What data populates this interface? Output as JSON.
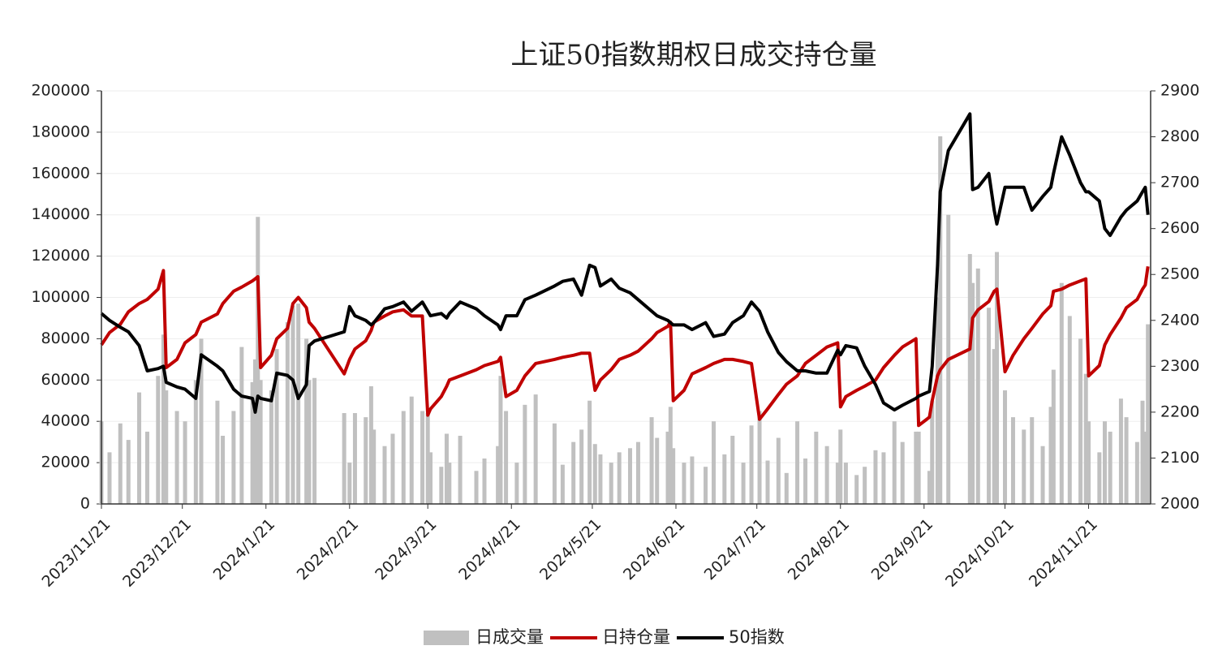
{
  "chart_data": {
    "type": "combo",
    "title": "上证50指数期权日成交持仓量",
    "x": [
      "2023/11/21",
      "2023/11/24",
      "2023/11/28",
      "2023/12/1",
      "2023/12/5",
      "2023/12/8",
      "2023/12/12",
      "2023/12/14",
      "2023/12/15",
      "2023/12/19",
      "2023/12/22",
      "2023/12/26",
      "2023/12/28",
      "2024/1/3",
      "2024/1/5",
      "2024/1/9",
      "2024/1/12",
      "2024/1/16",
      "2024/1/17",
      "2024/1/18",
      "2024/1/19",
      "2024/1/23",
      "2024/1/25",
      "2024/1/29",
      "2024/1/31",
      "2024/2/2",
      "2024/2/5",
      "2024/2/6",
      "2024/2/8",
      "2024/2/19",
      "2024/2/21",
      "2024/2/23",
      "2024/2/27",
      "2024/2/29",
      "2024/3/1",
      "2024/3/5",
      "2024/3/8",
      "2024/3/12",
      "2024/3/15",
      "2024/3/19",
      "2024/3/21",
      "2024/3/22",
      "2024/3/26",
      "2024/3/28",
      "2024/3/29",
      "2024/4/2",
      "2024/4/8",
      "2024/4/11",
      "2024/4/16",
      "2024/4/17",
      "2024/4/19",
      "2024/4/23",
      "2024/4/26",
      "2024/4/30",
      "2024/5/7",
      "2024/5/10",
      "2024/5/14",
      "2024/5/17",
      "2024/5/20",
      "2024/5/22",
      "2024/5/24",
      "2024/5/28",
      "2024/5/31",
      "2024/6/4",
      "2024/6/7",
      "2024/6/12",
      "2024/6/14",
      "2024/6/18",
      "2024/6/19",
      "2024/6/20",
      "2024/6/24",
      "2024/6/27",
      "2024/7/2",
      "2024/7/5",
      "2024/7/9",
      "2024/7/12",
      "2024/7/16",
      "2024/7/19",
      "2024/7/22",
      "2024/7/25",
      "2024/7/29",
      "2024/8/1",
      "2024/8/5",
      "2024/8/8",
      "2024/8/12",
      "2024/8/16",
      "2024/8/20",
      "2024/8/21",
      "2024/8/23",
      "2024/8/27",
      "2024/8/30",
      "2024/9/3",
      "2024/9/6",
      "2024/9/10",
      "2024/9/13",
      "2024/9/18",
      "2024/9/19",
      "2024/9/23",
      "2024/9/24",
      "2024/9/26",
      "2024/9/27",
      "2024/9/30",
      "2024/10/8",
      "2024/10/9",
      "2024/10/11",
      "2024/10/15",
      "2024/10/17",
      "2024/10/18",
      "2024/10/21",
      "2024/10/24",
      "2024/10/28",
      "2024/10/31",
      "2024/11/4",
      "2024/11/7",
      "2024/11/8",
      "2024/11/11",
      "2024/11/14",
      "2024/11/18",
      "2024/11/20",
      "2024/11/21",
      "2024/11/25",
      "2024/11/27",
      "2024/11/29",
      "2024/12/3",
      "2024/12/5",
      "2024/12/9",
      "2024/12/11",
      "2024/12/12",
      "2024/12/13"
    ],
    "series": [
      {
        "name": "日成交量",
        "kind": "bar",
        "color": "#c0c0c0",
        "values": [
          40000,
          25000,
          39000,
          31000,
          54000,
          35000,
          62000,
          82000,
          55000,
          45000,
          40000,
          60000,
          80000,
          50000,
          33000,
          45000,
          76000,
          59000,
          70000,
          139000,
          60000,
          55000,
          75000,
          88000,
          96000,
          97000,
          80000,
          60000,
          61000,
          44000,
          20000,
          44000,
          42000,
          57000,
          36000,
          28000,
          34000,
          45000,
          52000,
          45000,
          44000,
          25000,
          18000,
          34000,
          20000,
          33000,
          16000,
          22000,
          28000,
          62000,
          45000,
          20000,
          48000,
          53000,
          39000,
          19000,
          30000,
          36000,
          50000,
          29000,
          24000,
          20000,
          25000,
          27000,
          30000,
          42000,
          32000,
          35000,
          47000,
          27000,
          20000,
          23000,
          18000,
          40000,
          24000,
          33000,
          20000,
          38000,
          45000,
          21000,
          32000,
          15000,
          40000,
          22000,
          35000,
          28000,
          20000,
          36000,
          20000,
          14000,
          18000,
          26000,
          25000,
          40000,
          30000,
          35000,
          35000,
          16000,
          50000,
          100000,
          178000,
          140000,
          121000,
          107000,
          114000,
          95000,
          75000,
          122000,
          55000,
          42000,
          36000,
          42000,
          28000,
          47000,
          65000,
          107000,
          91000,
          80000,
          63000,
          40000,
          25000,
          40000,
          35000,
          51000,
          42000,
          30000,
          50000,
          35000,
          87000
        ]
      },
      {
        "name": "日持仓量",
        "kind": "line",
        "color": "#c00000",
        "values": [
          77000,
          83000,
          87000,
          93000,
          97000,
          99000,
          104000,
          113000,
          66000,
          70000,
          78000,
          82000,
          88000,
          92000,
          97000,
          103000,
          105000,
          108000,
          109000,
          110000,
          66000,
          72000,
          80000,
          85000,
          97000,
          100000,
          95000,
          88000,
          85000,
          63000,
          70000,
          75000,
          79000,
          84000,
          88000,
          91000,
          93000,
          94000,
          91000,
          91000,
          43000,
          46000,
          52000,
          57000,
          60000,
          62000,
          65000,
          67000,
          69000,
          71000,
          52000,
          55000,
          62000,
          68000,
          70000,
          71000,
          72000,
          73000,
          73000,
          55000,
          60000,
          65000,
          70000,
          72000,
          74000,
          80000,
          83000,
          86000,
          88000,
          50000,
          55000,
          63000,
          66000,
          68000,
          70000,
          70000,
          69000,
          68000,
          41000,
          46000,
          53000,
          58000,
          62000,
          68000,
          72000,
          76000,
          78000,
          47000,
          52000,
          55000,
          57000,
          60000,
          66000,
          72000,
          76000,
          80000,
          38000,
          42000,
          50000,
          62000,
          65000,
          70000,
          75000,
          90000,
          94000,
          98000,
          103000,
          104000,
          64000,
          72000,
          80000,
          85000,
          92000,
          96000,
          103000,
          104000,
          106000,
          108000,
          109000,
          62000,
          67000,
          77000,
          82000,
          90000,
          95000,
          99000,
          104000,
          106000,
          115000
        ]
      },
      {
        "name": "50指数",
        "kind": "line",
        "axis": "y2",
        "color": "#000000",
        "values": [
          2415,
          2400,
          2385,
          2375,
          2345,
          2290,
          2295,
          2300,
          2265,
          2255,
          2250,
          2230,
          2325,
          2300,
          2290,
          2250,
          2235,
          2230,
          2200,
          2235,
          2230,
          2225,
          2285,
          2280,
          2270,
          2230,
          2260,
          2345,
          2355,
          2375,
          2430,
          2410,
          2400,
          2390,
          2395,
          2425,
          2430,
          2440,
          2420,
          2440,
          2420,
          2410,
          2415,
          2405,
          2415,
          2440,
          2425,
          2410,
          2390,
          2380,
          2410,
          2410,
          2445,
          2455,
          2475,
          2485,
          2490,
          2455,
          2520,
          2515,
          2475,
          2490,
          2470,
          2460,
          2445,
          2420,
          2410,
          2400,
          2395,
          2390,
          2390,
          2380,
          2395,
          2365,
          2370,
          2395,
          2410,
          2440,
          2420,
          2375,
          2330,
          2310,
          2290,
          2290,
          2285,
          2285,
          2335,
          2325,
          2345,
          2340,
          2300,
          2260,
          2220,
          2205,
          2215,
          2230,
          2235,
          2245,
          2300,
          2520,
          2680,
          2770,
          2850,
          2685,
          2690,
          2720,
          2640,
          2610,
          2690,
          2690,
          2690,
          2640,
          2670,
          2690,
          2720,
          2800,
          2760,
          2700,
          2680,
          2680,
          2660,
          2600,
          2585,
          2625,
          2640,
          2660,
          2680,
          2690,
          2630
        ]
      }
    ],
    "xlim": [
      "2023/11/21",
      "2024/12/14"
    ],
    "xticks": [
      "2023/11/21",
      "2023/12/21",
      "2024/1/21",
      "2024/2/21",
      "2024/3/21",
      "2024/4/21",
      "2024/5/21",
      "2024/6/21",
      "2024/7/21",
      "2024/8/21",
      "2024/9/21",
      "2024/10/21",
      "2024/11/21"
    ],
    "ylim": [
      0,
      200000
    ],
    "yticks": [
      0,
      20000,
      40000,
      60000,
      80000,
      100000,
      120000,
      140000,
      160000,
      180000,
      200000
    ],
    "y2lim": [
      2000,
      2900
    ],
    "y2ticks": [
      2000,
      2100,
      2200,
      2300,
      2400,
      2500,
      2600,
      2700,
      2800,
      2900
    ],
    "grid": true,
    "legend": "bottom"
  }
}
